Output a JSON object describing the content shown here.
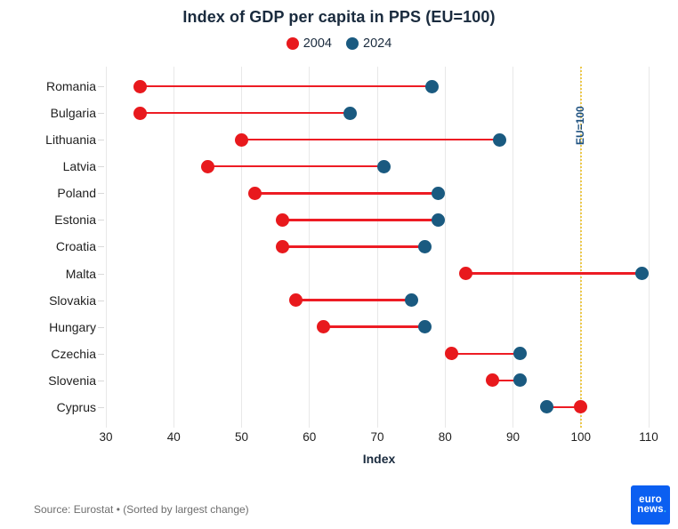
{
  "chart_data": {
    "type": "scatter",
    "subtype": "dumbbell",
    "title": "Index of GDP per capita in PPS (EU=100)",
    "categories": [
      "Romania",
      "Bulgaria",
      "Lithuania",
      "Latvia",
      "Poland",
      "Estonia",
      "Croatia",
      "Malta",
      "Slovakia",
      "Hungary",
      "Czechia",
      "Slovenia",
      "Cyprus"
    ],
    "series": [
      {
        "name": "2004",
        "color": "#e8191d",
        "values": [
          35,
          35,
          50,
          45,
          52,
          56,
          56,
          83,
          58,
          62,
          81,
          87,
          100
        ]
      },
      {
        "name": "2024",
        "color": "#1a5a80",
        "values": [
          78,
          66,
          88,
          71,
          79,
          79,
          77,
          109,
          75,
          77,
          91,
          91,
          95
        ]
      }
    ],
    "connector_color": "#ed1c24",
    "xlabel": "Index",
    "ylabel": "",
    "xlim": [
      30,
      110
    ],
    "xticks": [
      30,
      40,
      50,
      60,
      70,
      80,
      90,
      100,
      110
    ],
    "grid": true,
    "legend_position": "top",
    "reference_line": {
      "value": 100,
      "label": "EU=100",
      "color": "#edc94b",
      "label_color": "#1e5180"
    }
  },
  "footer": {
    "source": "Source: Eurostat • (Sorted by largest change)",
    "logo": {
      "line1": "euro",
      "line2": "news",
      "dot": "."
    }
  }
}
